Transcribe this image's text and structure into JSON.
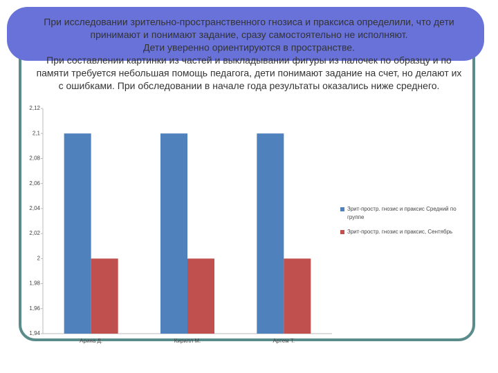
{
  "slide_text": [
    "При исследовании зрительно-пространственного гнозиса и праксиса определили, что дети",
    "принимают и понимают задание, сразу самостоятельно не исполняют.",
    "Дети уверенно ориентируются в пространстве.",
    "При составлении картинки из частей и выкладывании фигуры из палочек по образцу и по",
    "памяти требуется небольшая помощь педагога, дети понимают задание на счет, но делают их",
    "с ошибками. При обследовании в начале года результаты оказались ниже среднего."
  ],
  "chart_data": {
    "type": "bar",
    "categories": [
      "Арина Д.",
      "Кирилл М.",
      "Артем Т."
    ],
    "series": [
      {
        "name": "Зрит-простр. гнозис и праксис Средний по группе",
        "color": "#4f81bd",
        "values": [
          2.1,
          2.1,
          2.1
        ]
      },
      {
        "name": "Зрит-простр. гнозис и праксис, Сентябрь",
        "color": "#c0504d",
        "values": [
          2,
          2,
          2
        ]
      }
    ],
    "ylim": [
      1.94,
      2.12
    ],
    "yticks": [
      {
        "value": 1.94,
        "label": "1,94"
      },
      {
        "value": 1.96,
        "label": "1,96"
      },
      {
        "value": 1.98,
        "label": "1,98"
      },
      2,
      {
        "value": 2.02,
        "label": "2,02"
      },
      {
        "value": 2.04,
        "label": "2,04"
      },
      {
        "value": 2.06,
        "label": "2,06"
      },
      {
        "value": 2.08,
        "label": "2,08"
      },
      {
        "value": 2.1,
        "label": "2,1"
      },
      {
        "value": 2.12,
        "label": "2,12"
      }
    ],
    "legend": "right"
  }
}
